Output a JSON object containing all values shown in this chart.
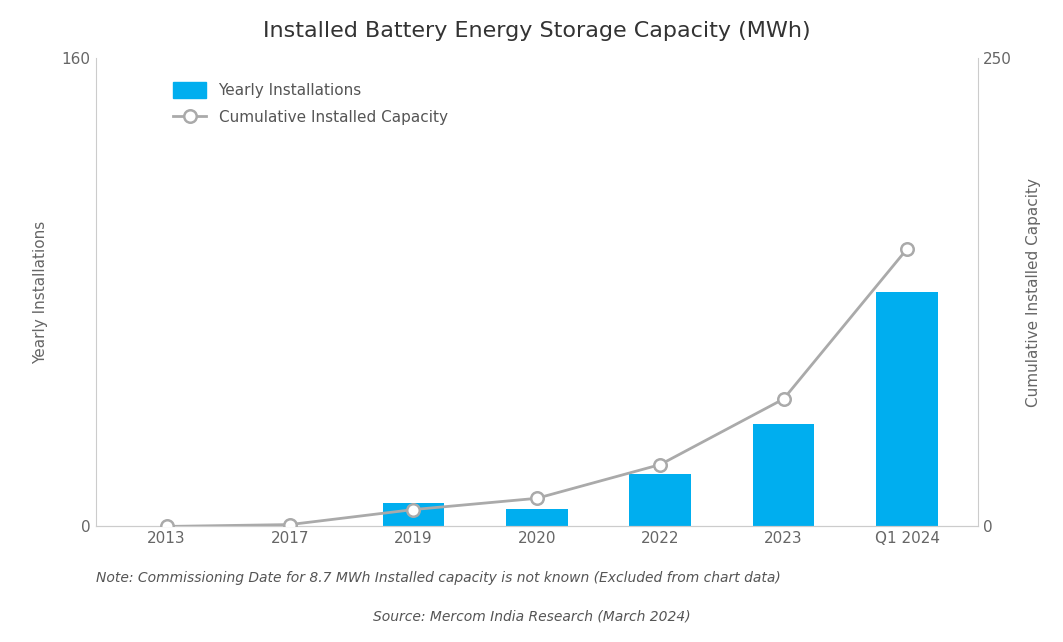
{
  "title": "Installed Battery Energy Storage Capacity (MWh)",
  "categories": [
    "2013",
    "2017",
    "2019",
    "2020",
    "2022",
    "2023",
    "Q1 2024"
  ],
  "yearly_values": [
    0,
    0,
    8,
    6,
    18,
    35,
    80
  ],
  "cumulative_values": [
    0,
    1,
    9,
    15,
    33,
    68,
    148
  ],
  "bar_color": "#00AEEF",
  "line_color": "#aaaaaa",
  "marker_color": "#ffffff",
  "marker_edge_color": "#aaaaaa",
  "left_ylabel": "Yearly Installations",
  "right_ylabel": "Cumulative Installed Capacity",
  "left_ylim": [
    0,
    160
  ],
  "right_ylim": [
    0,
    250
  ],
  "left_yticks": [
    0,
    160
  ],
  "right_yticks": [
    0,
    250
  ],
  "note": "Note: Commissioning Date for 8.7 MWh Installed capacity is not known (Excluded from chart data)",
  "source": "Source: Mercom India Research (March 2024)",
  "legend_bar_label": "Yearly Installations",
  "legend_line_label": "Cumulative Installed Capacity",
  "background_color": "#ffffff",
  "spine_color": "#cccccc",
  "title_fontsize": 16,
  "label_fontsize": 11,
  "tick_fontsize": 11,
  "note_fontsize": 10,
  "source_fontsize": 10
}
